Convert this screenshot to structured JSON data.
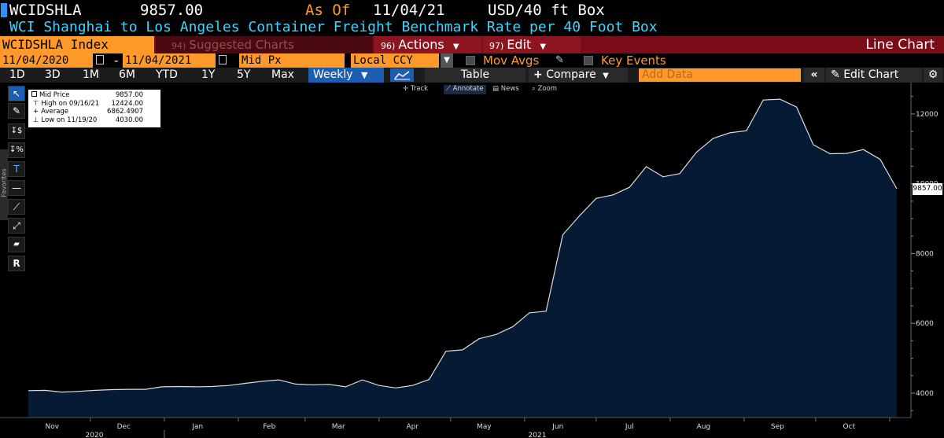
{
  "header": {
    "ticker": "WCIDSHLA",
    "price": "9857.00",
    "as_of_label": "As Of",
    "as_of_date": "11/04/21",
    "unit": "USD/40 ft Box",
    "description": "WCI Shanghai to Los Angeles Container Freight Benchmark Rate per 40 Foot Box"
  },
  "menu": {
    "index": "WCIDSHLA Index",
    "suggested_num": "94)",
    "suggested": "Suggested Charts",
    "actions_num": "96)",
    "actions": "Actions",
    "edit_num": "97)",
    "edit": "Edit",
    "chart_type": "Line Chart"
  },
  "controls": {
    "start_date": "11/04/2020",
    "end_date": "11/04/2021",
    "field": "Mid Px",
    "currency": "Local CCY",
    "mov_avgs": "Mov Avgs",
    "key_events": "Key Events"
  },
  "periods": [
    "1D",
    "3D",
    "1M",
    "6M",
    "YTD",
    "1Y",
    "5Y",
    "Max"
  ],
  "toolbar": {
    "frequency": "Weekly",
    "table": "Table",
    "compare": "Compare",
    "add_data_placeholder": "Add Data",
    "edit_chart": "Edit Chart"
  },
  "chart_tools": {
    "track": "Track",
    "annotate": "Annotate",
    "news": "News",
    "zoom": "Zoom",
    "favorites": "Favorites"
  },
  "legend": {
    "series": "Mid Price",
    "series_value": "9857.00",
    "high_label": "High on 09/16/21",
    "high_value": "12424.00",
    "avg_label": "Average",
    "avg_value": "6862.4907",
    "low_label": "Low on 11/19/20",
    "low_value": "4030.00"
  },
  "colors": {
    "area_fill": "#061b33",
    "line": "#d8dde6",
    "accent_orange": "#ff9a2a",
    "title_cyan": "#3ad6ff",
    "menu_red": "#7a0d17"
  },
  "chart_data": {
    "type": "area",
    "y_axis_side": "right",
    "ylim": [
      3300,
      12900
    ],
    "y_ticks": [
      4000,
      6000,
      8000,
      10000,
      12000
    ],
    "last_value_label": "9857.00",
    "x_month_labels": [
      "Nov",
      "Dec",
      "Jan",
      "Feb",
      "Mar",
      "Apr",
      "May",
      "Jun",
      "Jul",
      "Aug",
      "Sep",
      "Oct"
    ],
    "x_year_labels": [
      "2020",
      "2021"
    ],
    "x": [
      "11/05/20",
      "11/12/20",
      "11/19/20",
      "11/26/20",
      "12/03/20",
      "12/10/20",
      "12/17/20",
      "12/24/20",
      "12/31/20",
      "01/07/21",
      "01/14/21",
      "01/21/21",
      "01/28/21",
      "02/04/21",
      "02/11/21",
      "02/18/21",
      "02/25/21",
      "03/04/21",
      "03/11/21",
      "03/18/21",
      "03/25/21",
      "04/01/21",
      "04/08/21",
      "04/15/21",
      "04/22/21",
      "04/29/21",
      "05/06/21",
      "05/13/21",
      "05/20/21",
      "05/27/21",
      "06/03/21",
      "06/10/21",
      "06/17/21",
      "06/24/21",
      "07/01/21",
      "07/08/21",
      "07/15/21",
      "07/22/21",
      "07/29/21",
      "08/05/21",
      "08/12/21",
      "08/19/21",
      "08/26/21",
      "09/02/21",
      "09/09/21",
      "09/16/21",
      "09/23/21",
      "09/30/21",
      "10/07/21",
      "10/14/21",
      "10/21/21",
      "10/28/21",
      "11/04/21"
    ],
    "values": [
      4070,
      4080,
      4030,
      4050,
      4080,
      4100,
      4110,
      4110,
      4180,
      4190,
      4180,
      4190,
      4220,
      4280,
      4340,
      4380,
      4260,
      4240,
      4250,
      4180,
      4380,
      4220,
      4150,
      4220,
      4390,
      5200,
      5240,
      5560,
      5680,
      5900,
      6300,
      6350,
      8540,
      9080,
      9580,
      9680,
      9900,
      10490,
      10200,
      10290,
      10900,
      11300,
      11460,
      11520,
      12400,
      12424,
      12200,
      11120,
      10860,
      10870,
      10980,
      10700,
      9857
    ]
  }
}
